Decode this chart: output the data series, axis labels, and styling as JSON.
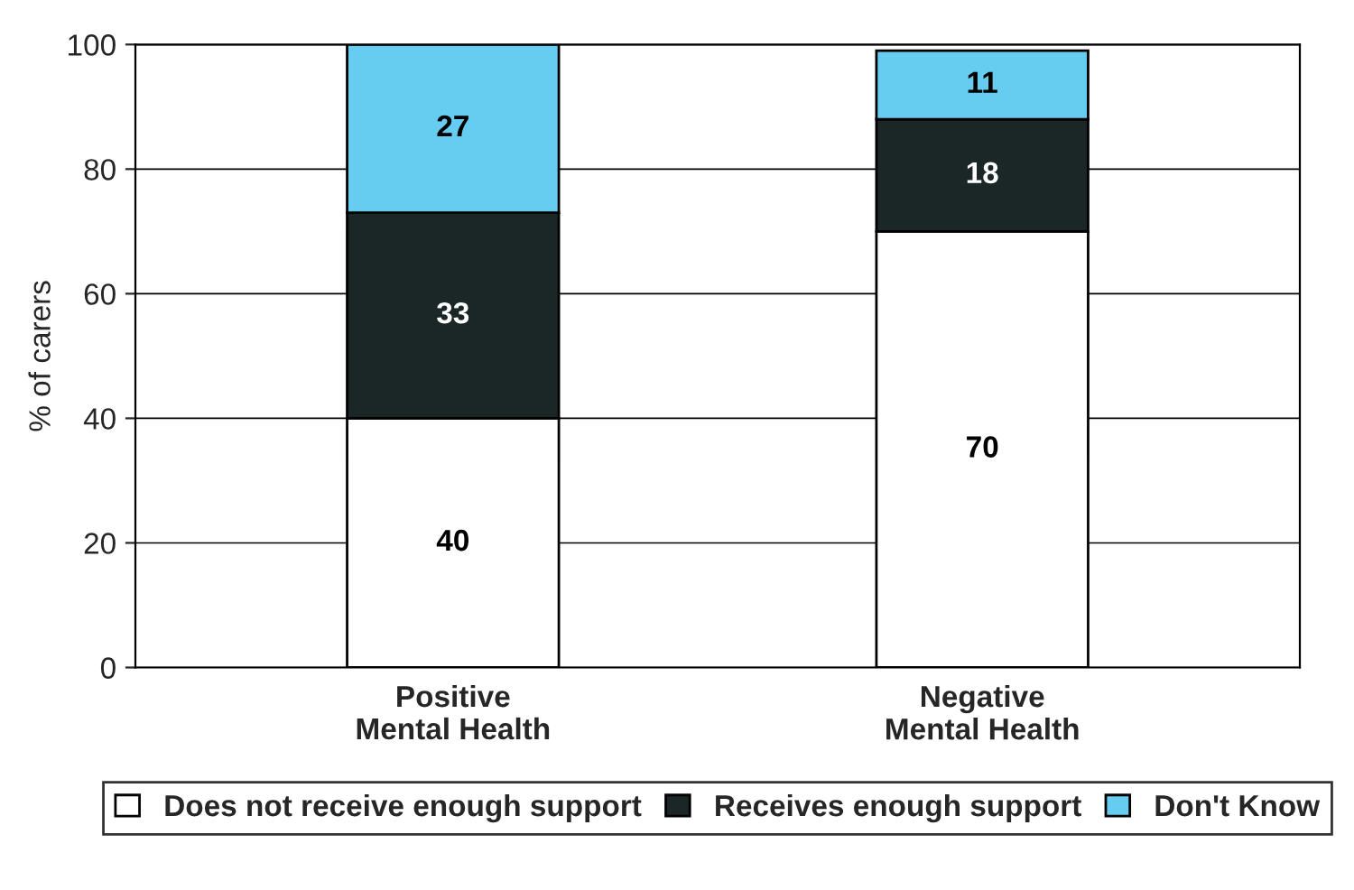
{
  "chart_data": {
    "type": "bar",
    "stacked": true,
    "ylabel": "% of carers",
    "categories": [
      "Positive\nMental Health",
      "Negative\nMental Health"
    ],
    "series": [
      {
        "name": "Does not receive enough support",
        "color": "#ffffff",
        "values": [
          40,
          70
        ]
      },
      {
        "name": "Receives enough support",
        "color": "#1b2626",
        "values": [
          33,
          18
        ]
      },
      {
        "name": "Don't Know",
        "color": "#66ccf0",
        "values": [
          27,
          11
        ]
      }
    ],
    "ylim": [
      0,
      100
    ],
    "yticks": [
      0,
      20,
      40,
      60,
      80,
      100
    ],
    "grid": "y",
    "legend": "bottom",
    "data_labels": true
  }
}
